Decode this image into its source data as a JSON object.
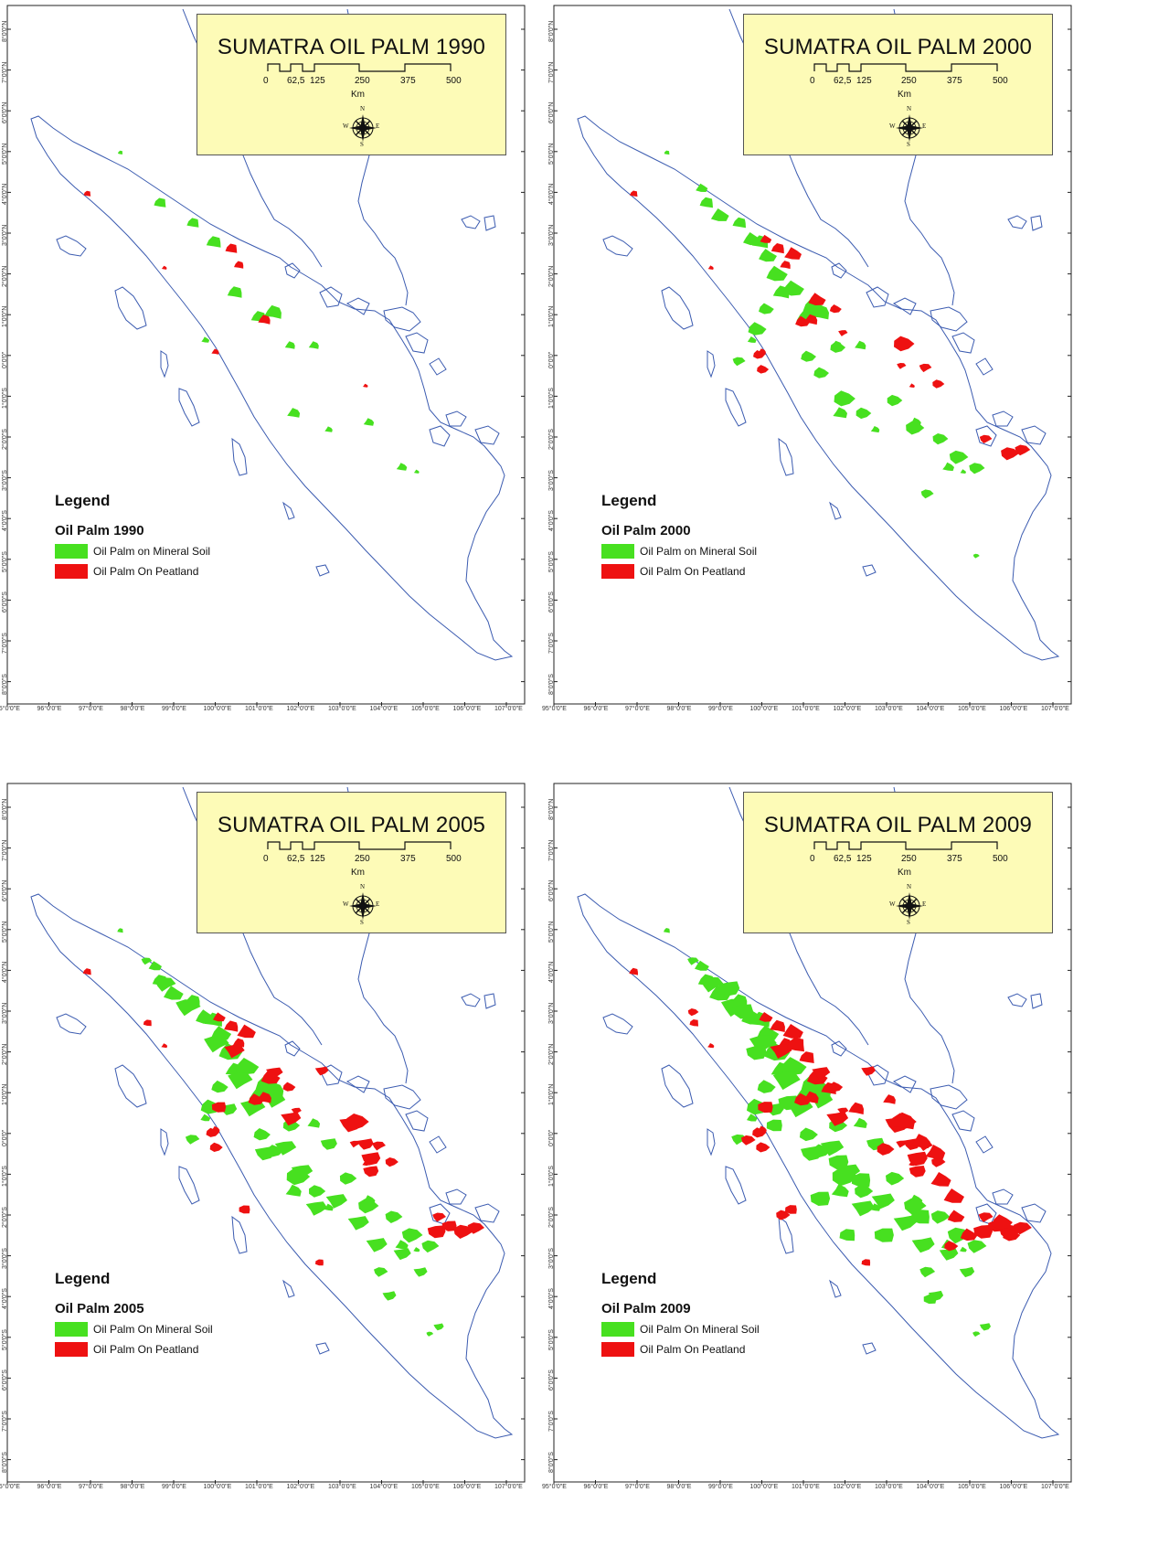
{
  "colors": {
    "mineral": "#47e020",
    "peat": "#ee1111",
    "coast": "#3b5bb0",
    "title_bg": "#fdfbb7"
  },
  "scale": {
    "ticks": [
      "0",
      "62,5",
      "125",
      "250",
      "375",
      "500"
    ],
    "unit": "Km"
  },
  "compass": {
    "n": "N",
    "s": "S",
    "e": "E",
    "w": "W"
  },
  "lon_ticks": [
    "95°0'0\"E",
    "96°0'0\"E",
    "97°0'0\"E",
    "98°0'0\"E",
    "99°0'0\"E",
    "100°0'0\"E",
    "101°0'0\"E",
    "102°0'0\"E",
    "103°0'0\"E",
    "104°0'0\"E",
    "105°0'0\"E",
    "106°0'0\"E",
    "107°0'0\"E"
  ],
  "lat_ticks": [
    "8°0'0\"N",
    "7°0'0\"N",
    "6°0'0\"N",
    "5°0'0\"N",
    "4°0'0\"N",
    "3°0'0\"N",
    "2°0'0\"N",
    "1°0'0\"N",
    "0°0'0\"",
    "1°0'0\"S",
    "2°0'0\"S",
    "3°0'0\"S",
    "4°0'0\"S",
    "5°0'0\"S",
    "6°0'0\"S",
    "7°0'0\"S",
    "8°0'0\"S"
  ],
  "panels": [
    {
      "title": "SUMATRA OIL PALM 1990",
      "legend_title": "Legend",
      "legend_subtitle": "Oil Palm 1990",
      "mineral_label": "Oil Palm on Mineral Soil",
      "peat_label": "Oil Palm On Peatland",
      "level": 1
    },
    {
      "title": "SUMATRA OIL PALM 2000",
      "legend_title": "Legend",
      "legend_subtitle": "Oil Palm 2000",
      "mineral_label": "Oil Palm on Mineral Soil",
      "peat_label": "Oil Palm On Peatland",
      "level": 2
    },
    {
      "title": "SUMATRA OIL PALM 2005",
      "legend_title": "Legend",
      "legend_subtitle": "Oil Palm 2005",
      "mineral_label": "Oil Palm On Mineral Soil",
      "peat_label": "Oil Palm On Peatland",
      "level": 3
    },
    {
      "title": "SUMATRA OIL PALM 2009",
      "legend_title": "Legend",
      "legend_subtitle": "Oil Palm 2009",
      "mineral_label": "Oil Palm On Mineral Soil",
      "peat_label": "Oil Palm On Peatland",
      "level": 4
    }
  ]
}
